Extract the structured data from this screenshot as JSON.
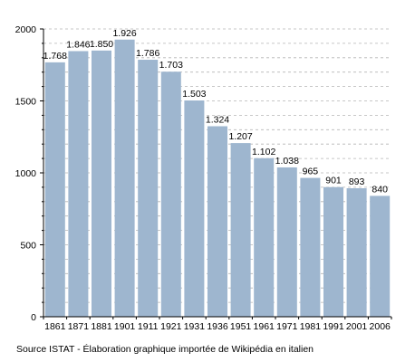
{
  "chart_data": {
    "type": "bar",
    "categories": [
      "1861",
      "1871",
      "1881",
      "1901",
      "1911",
      "1921",
      "1931",
      "1936",
      "1951",
      "1961",
      "1971",
      "1981",
      "1991",
      "2001",
      "2006"
    ],
    "values": [
      1768,
      1846,
      1850,
      1926,
      1786,
      1703,
      1503,
      1324,
      1207,
      1102,
      1038,
      965,
      901,
      893,
      840
    ],
    "value_labels": [
      "1.768",
      "1.846",
      "1.850",
      "1.926",
      "1.786",
      "1.703",
      "1.503",
      "1.324",
      "1.207",
      "1.102",
      "1.038",
      "965",
      "901",
      "893",
      "840"
    ],
    "y_ticks": [
      "0",
      "500",
      "1000",
      "1500",
      "2000"
    ],
    "ylim": [
      0,
      2000
    ],
    "grid": true,
    "colors": {
      "bar": "#9eb6cf",
      "grid": "#b5b5b5",
      "axis": "#000000"
    }
  },
  "source_note": "Source ISTAT - Élaboration graphique importée de Wikipédia en italien"
}
